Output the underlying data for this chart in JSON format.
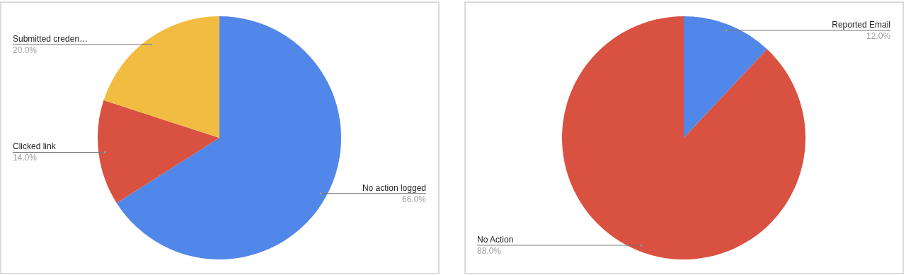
{
  "chart_data": [
    {
      "type": "pie",
      "categories": [
        "No action logged",
        "Clicked link",
        "Submitted creden…"
      ],
      "values": [
        66,
        14,
        20
      ],
      "colors": [
        "#5087e8",
        "#d95141",
        "#f2bc42"
      ],
      "value_labels": [
        "66.0%",
        "14.0%",
        "20.0%"
      ]
    },
    {
      "type": "pie",
      "categories": [
        "Reported Email",
        "No Action"
      ],
      "values": [
        12,
        88
      ],
      "colors": [
        "#5087e8",
        "#d95141"
      ],
      "value_labels": [
        "12.0%",
        "88.0%"
      ]
    }
  ]
}
